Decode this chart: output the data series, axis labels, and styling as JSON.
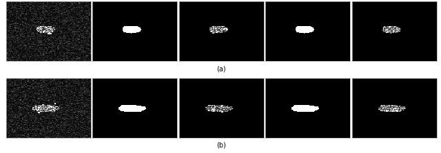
{
  "rows": 2,
  "cols": 5,
  "fig_width": 6.4,
  "fig_height": 2.23,
  "label_a": "(a)",
  "label_b": "(b)",
  "outer_bg": "#ffffff",
  "label_fontsize": 7,
  "image_border_color": "#aaaaaa",
  "image_border_lw": 0.5
}
